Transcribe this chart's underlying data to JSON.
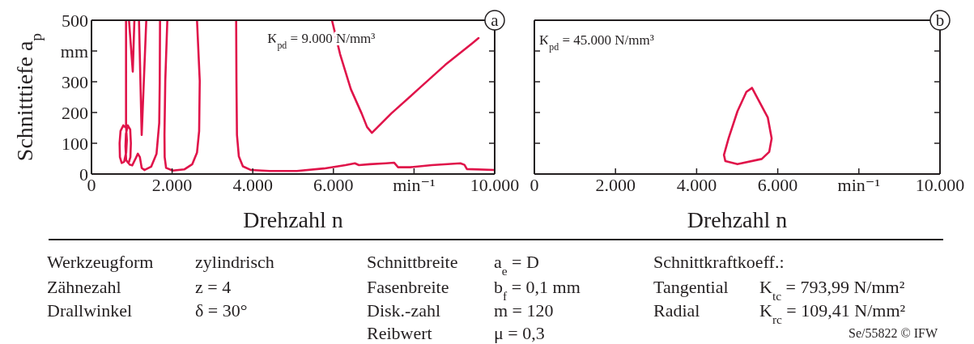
{
  "chart_data": [
    {
      "type": "line",
      "xlabel": "Drehzahl n",
      "ylabel": "Schnitttiefe a$_{p}$",
      "xlim": [
        0,
        10000
      ],
      "ylim": [
        0,
        500
      ],
      "xticks": [
        0,
        {
          "value": 2000,
          "label": "2.000"
        },
        {
          "value": 4000,
          "label": "4.000"
        },
        {
          "value": 6000,
          "label": "6.000"
        },
        {
          "value": 8000,
          "label": "min⁻¹"
        },
        {
          "value": 10000,
          "label": "10.000"
        }
      ],
      "yticks": [
        0,
        100,
        200,
        300,
        {
          "value": 400,
          "label": "mm"
        },
        500
      ],
      "annotations": [
        "K$_{pd}$ = 9.000 N/mm³",
        "a"
      ],
      "series": [
        {
          "color": "#e0144a",
          "x": [
            790,
            720,
            697,
            705,
            750,
            810,
            860,
            877,
            860,
            790,
            755,
            null,
            900,
            855,
            843,
            860,
            920,
            965,
            977,
            960,
            900,
            878,
            null,
            857,
            857,
            null,
            930,
            1024,
            1064,
            null,
            944,
            1010,
            1100,
            1150,
            1200,
            1245,
            1312,
            1480,
            1613,
            1680,
            1693,
            1700,
            null,
            1178,
            1245,
            1359,
            null,
            1881,
            1830,
            1810,
            1815,
            1850,
            2014,
            2300,
            2500,
            2617,
            2670,
            2685,
            2617,
            null,
            3588,
            3595,
            3608,
            3655,
            3755,
            3956,
            4418,
            5094,
            5763,
            6299,
            6533,
            6633,
            6901,
            7303,
            7504,
            7604,
            7905,
            8440,
            9150,
            9250,
            9311,
            10000,
            null,
            5964,
            6165,
            6432,
            6700,
            6834,
            6955,
            7436,
            8106,
            8775,
            9444,
            9600
          ],
          "values": [
            158,
            140,
            100,
            55,
            36,
            40,
            70,
            110,
            150,
            158,
            149,
            null,
            158,
            130,
            90,
            45,
            35,
            55,
            100,
            145,
            158,
            144,
            null,
            158,
            500,
            null,
            500,
            333,
            500,
            null,
            31,
            28,
            52,
            66,
            55,
            20,
            13,
            24,
            66,
            166,
            298,
            500,
            null,
            500,
            127,
            500,
            null,
            500,
            303,
            127,
            55,
            20,
            11,
            15,
            32,
            70,
            140,
            303,
            500,
            null,
            500,
            303,
            127,
            57,
            25,
            13,
            10,
            10,
            18,
            29,
            35,
            29,
            32,
            35,
            37,
            22,
            22,
            29,
            35,
            30,
            16,
            13,
            null,
            500,
            390,
            276,
            197,
            153,
            134,
            197,
            276,
            355,
            425,
            442
          ]
        }
      ]
    },
    {
      "type": "line",
      "xlabel": "Drehzahl n",
      "xlim": [
        0,
        10000
      ],
      "ylim": [
        0,
        500
      ],
      "xticks": [
        0,
        {
          "value": 2000,
          "label": "2.000"
        },
        {
          "value": 4000,
          "label": "4.000"
        },
        {
          "value": 6000,
          "label": "6.000"
        },
        {
          "value": 8000,
          "label": "min⁻¹"
        },
        {
          "value": 10000,
          "label": "10.000"
        }
      ],
      "yticks": [
        0,
        100,
        200,
        300,
        400,
        500
      ],
      "tick_labels": "x",
      "annotations": [
        "K$_{pd}$ = 45.000 N/mm³",
        "b"
      ],
      "series": [
        {
          "color": "#e0144a",
          "x": [
            5366,
            5754,
            5850,
            5790,
            5606,
            5007,
            4708,
            4674,
            4788,
            5007,
            5227,
            5366,
            5480
          ],
          "values": [
            280,
            184,
            116,
            72,
            49,
            32,
            42,
            62,
            116,
            204,
            267,
            280,
            252
          ]
        }
      ]
    },
    {
      "type": "other",
      "annotations": [
        "Werkzeugform",
        "zylindrisch",
        "Zähnezahl",
        "z = 4",
        "Drallwinkel",
        "δ = 30°",
        "Schnittbreite",
        "a$_{e}$ = D",
        "Fasenbreite",
        "b$_{f}$ = 0,1 mm",
        "Disk.-zahl",
        "m = 120",
        "Reibwert",
        "μ = 0,3",
        "Schnittkraftkoeff.:",
        "Tangential",
        "K$_{tc}$ = 793,99 N/mm²",
        "Radial",
        "K$_{rc}$ = 109,41 N/mm²",
        "Se/55822 © IFW"
      ]
    }
  ]
}
